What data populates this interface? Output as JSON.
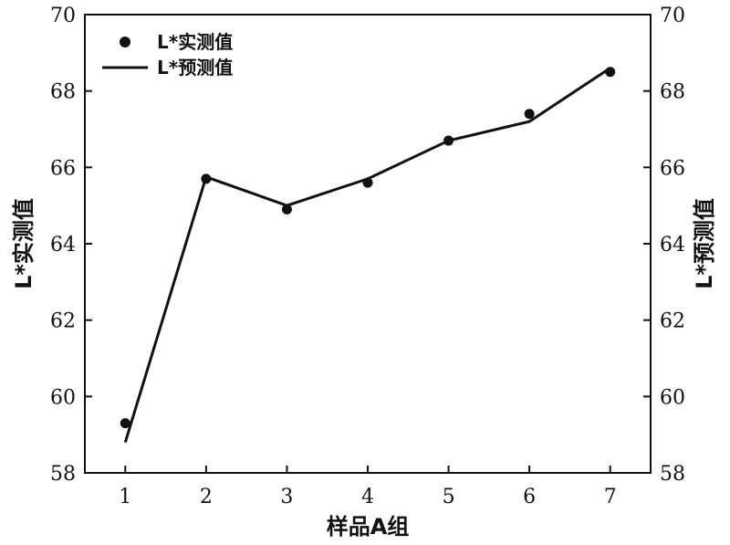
{
  "chart_data": {
    "type": "line",
    "x": [
      1,
      2,
      3,
      4,
      5,
      6,
      7
    ],
    "xlim": [
      0.5,
      7.5
    ],
    "ylim": [
      58,
      70
    ],
    "xticks": [
      1,
      2,
      3,
      4,
      5,
      6,
      7
    ],
    "yticks": [
      58,
      60,
      62,
      64,
      66,
      68,
      70
    ],
    "xlabel": "样品A组",
    "ylabel": "L*实测值",
    "ylabel_right": "L*预测值",
    "legend_position": "top-left",
    "series": [
      {
        "name": "L*实测值",
        "style": "scatter",
        "marker": "filled-circle",
        "color": "#111111",
        "values": [
          59.3,
          65.7,
          64.9,
          65.6,
          66.7,
          67.4,
          68.5
        ]
      },
      {
        "name": "L*预测值",
        "style": "line",
        "color": "#111111",
        "values": [
          58.8,
          65.75,
          65.0,
          65.7,
          66.7,
          67.2,
          68.6
        ]
      }
    ]
  }
}
